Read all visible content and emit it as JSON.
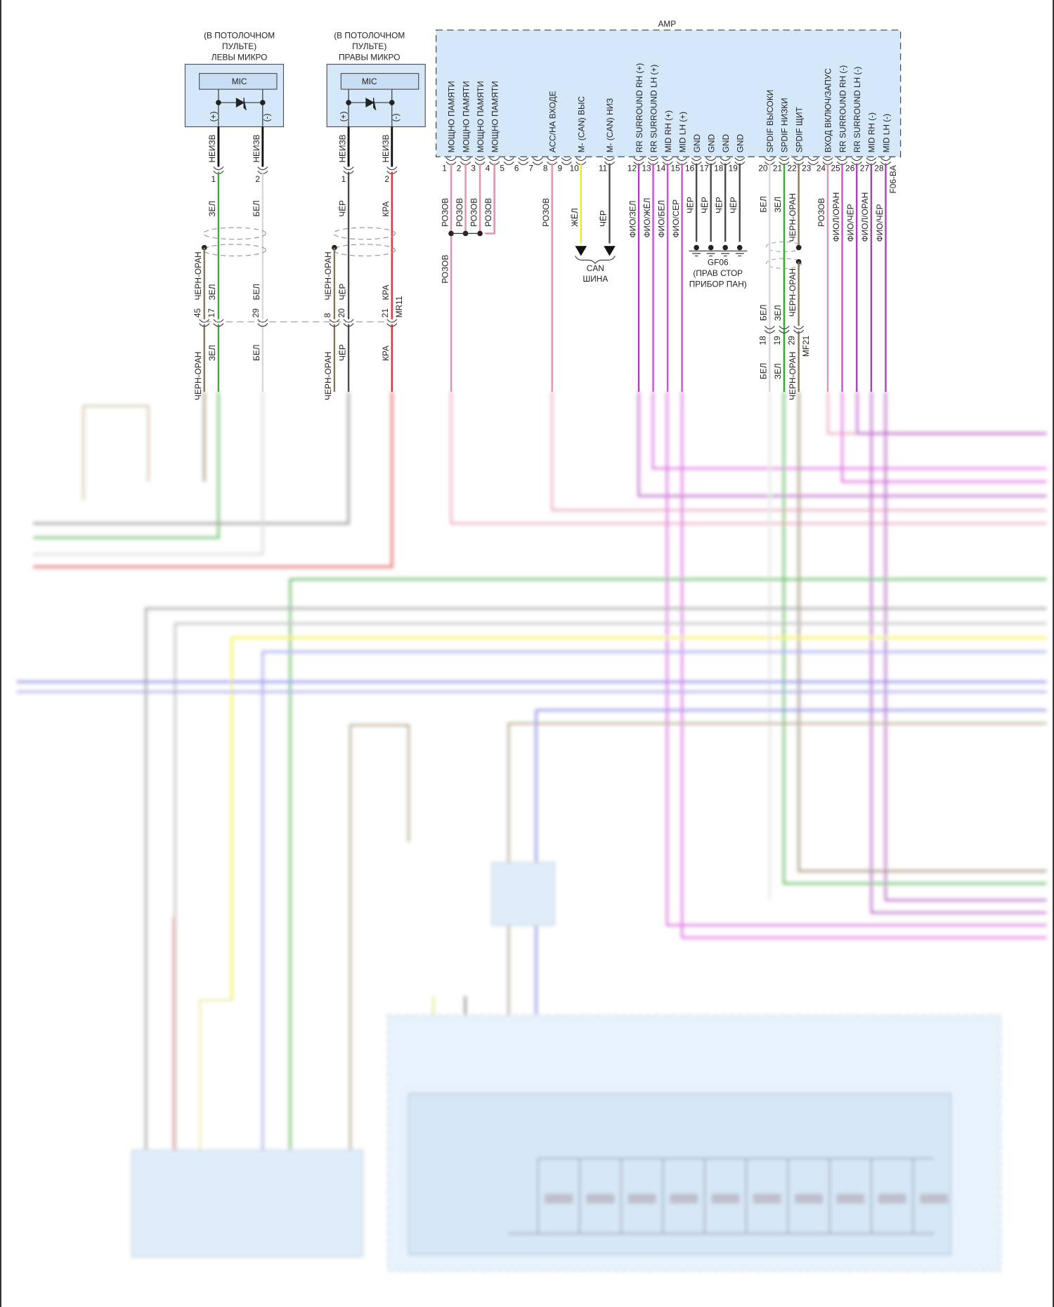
{
  "colors": {
    "rose": "#e591ab",
    "yellow": "#f2ee00",
    "black": "#4a4a4a",
    "violet": "#a93fb8",
    "magenta": "#d34bd6",
    "green": "#3da83a",
    "white": "#d8d8d8",
    "brown": "#8b7555",
    "red": "#e23232",
    "box_fill": "#d5e8fa",
    "box_stroke": "#555555",
    "blue": "#6a6ae0"
  },
  "mics": [
    {
      "title_lines": [
        "(В ПОТОЛОЧНОМ",
        "ПУЛЬТЕ)",
        "ЛЕВЫ МИКРО"
      ],
      "label": "MIC",
      "plus": "(+)",
      "minus": "(-)",
      "plus_wire": {
        "term": "НЕИЗВ",
        "pin": "1",
        "color_label": "ЗЕЛ",
        "inline_pin": "17",
        "inline_label": "ЗЕЛ",
        "below_label": "ЗЕЛ",
        "color": "green"
      },
      "minus_wire": {
        "term": "НЕИЗВ",
        "pin": "2",
        "color_label": "БЕЛ",
        "inline_pin": "29",
        "inline_label": "БЕЛ",
        "below_label": "БЕЛ",
        "color": "white"
      },
      "drain_wire": {
        "label": "ЧЕРН-ОРАН",
        "inline_pin": "45",
        "below_label": "ЧЕРН-ОРАН",
        "color": "brown"
      }
    },
    {
      "title_lines": [
        "(В ПОТОЛОЧНОМ",
        "ПУЛЬТЕ)",
        "ПРАВЫ МИКРО"
      ],
      "label": "MIC",
      "plus": "(+)",
      "minus": "(-)",
      "plus_wire": {
        "term": "НЕИЗВ",
        "pin": "1",
        "color_label": "ЧЁР",
        "inline_pin": "20",
        "inline_label": "ЧЁР",
        "below_label": "ЧЁР",
        "color": "black"
      },
      "minus_wire": {
        "term": "НЕИЗВ",
        "pin": "2",
        "color_label": "КРА",
        "inline_pin": "21",
        "inline_label": "КРА",
        "below_label": "КРА",
        "color": "red"
      },
      "drain_wire": {
        "label": "ЧЕРН-ОРАН",
        "inline_pin": "8",
        "below_label": "ЧЕРН-ОРАН",
        "color": "brown"
      }
    }
  ],
  "mic_inline_connector": "MR11",
  "amp": {
    "title": "AMP",
    "connector": "F06-BA",
    "pins": [
      {
        "n": "1",
        "name": "МОЩНО ПАМЯТИ",
        "wire": "РОЗОВ",
        "color": "rose"
      },
      {
        "n": "2",
        "name": "МОЩНО ПАМЯТИ",
        "wire": "РОЗОВ",
        "color": "rose"
      },
      {
        "n": "3",
        "name": "МОЩНО ПАМЯТИ",
        "wire": "РОЗОВ",
        "color": "rose"
      },
      {
        "n": "4",
        "name": "МОЩНО ПАМЯТИ",
        "wire": "РОЗОВ",
        "color": "rose"
      },
      {
        "n": "5",
        "name": "",
        "wire": "",
        "color": ""
      },
      {
        "n": "6",
        "name": "",
        "wire": "",
        "color": ""
      },
      {
        "n": "7",
        "name": "",
        "wire": "",
        "color": ""
      },
      {
        "n": "8",
        "name": "ACC/НА ВХОДЕ",
        "wire": "РОЗОВ",
        "color": "rose"
      },
      {
        "n": "9",
        "name": "",
        "wire": "",
        "color": ""
      },
      {
        "n": "10",
        "name": "M- (CAN) ВЫС",
        "wire": "ЖЁЛ",
        "color": "yellow"
      },
      {
        "n": "11",
        "name": "M- (CAN) НИЗ",
        "wire": "ЧЁР",
        "color": "black"
      },
      {
        "n": "12",
        "name": "RR SURROUND RH (+)",
        "wire": "ФИО/ЗЕЛ",
        "color": "violet"
      },
      {
        "n": "13",
        "name": "RR SURROUND LH (+)",
        "wire": "ФИО/ЖЁЛ",
        "color": "magenta"
      },
      {
        "n": "14",
        "name": "MID RH (+)",
        "wire": "ФИО/БЕЛ",
        "color": "magenta"
      },
      {
        "n": "15",
        "name": "MID LH (+)",
        "wire": "ФИО/СЕР",
        "color": "magenta"
      },
      {
        "n": "16",
        "name": "GND",
        "wire": "ЧЁР",
        "color": "black"
      },
      {
        "n": "17",
        "name": "GND",
        "wire": "ЧЁР",
        "color": "black"
      },
      {
        "n": "18",
        "name": "GND",
        "wire": "ЧЁР",
        "color": "black"
      },
      {
        "n": "19",
        "name": "GND",
        "wire": "ЧЁР",
        "color": "black"
      },
      {
        "n": "20",
        "name": "SPDIF ВЫСОКИ",
        "wire": "БЕЛ",
        "color": "white"
      },
      {
        "n": "21",
        "name": "SPDIF НИЗКИ",
        "wire": "ЗЕЛ",
        "color": "green"
      },
      {
        "n": "22",
        "name": "SPDIF ЩИТ",
        "wire": "ЧЕРН-ОРАН",
        "color": "brown"
      },
      {
        "n": "23",
        "name": "",
        "wire": "",
        "color": ""
      },
      {
        "n": "24",
        "name": "ВХОД ВКЛЮЧ/ЗАПУС",
        "wire": "РОЗОВ",
        "color": "rose"
      },
      {
        "n": "25",
        "name": "RR SURROUND RH (-)",
        "wire": "ФИОЛ/ОРАН",
        "color": "magenta"
      },
      {
        "n": "26",
        "name": "RR SURROUND LH (-)",
        "wire": "ФИО/ЧЁР",
        "color": "violet"
      },
      {
        "n": "27",
        "name": "MID RH (-)",
        "wire": "ФИОЛ/ОРАН",
        "color": "violet"
      },
      {
        "n": "28",
        "name": "MID LH (-)",
        "wire": "ФИО/ЧЁР",
        "color": "violet"
      }
    ],
    "splice_wire_label": "РОЗОВ",
    "can_bus": [
      "CAN",
      "ШИНА"
    ],
    "ground": [
      "GF06",
      "(ПРАВ СТОР",
      "ПРИБОР ПАН)"
    ],
    "spdif_inline": {
      "connector": "MF21",
      "wires": [
        {
          "pin": "18",
          "above": "БЕЛ",
          "below": "БЕЛ"
        },
        {
          "pin": "19",
          "above": "ЗЕЛ",
          "below": "ЗЕЛ"
        },
        {
          "pin": "29",
          "above": "ЧЕРН-ОРАН",
          "below": "ЧЕРН-ОРАН",
          "shield_label": "ЧЕРН-ОРАН"
        }
      ]
    }
  }
}
